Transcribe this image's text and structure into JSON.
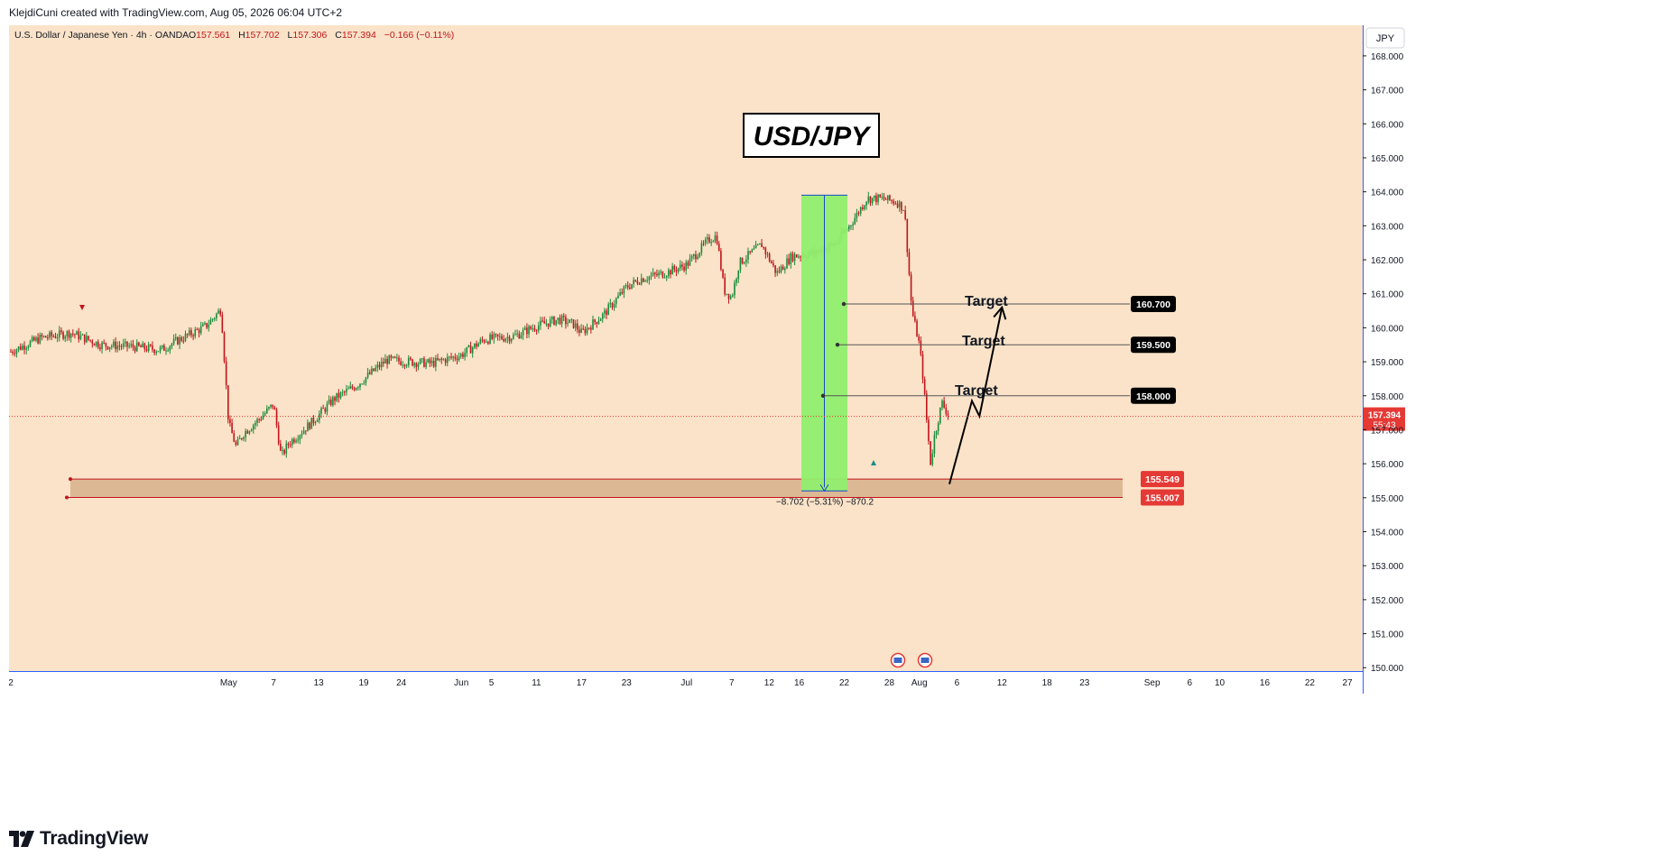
{
  "header": {
    "attribution": "KlejdiCuni created with TradingView.com, Aug 05, 2026 06:04 UTC+2"
  },
  "legend": {
    "symbol_text": "U.S. Dollar / Japanese Yen · 4h · OANDA",
    "o_label": "O",
    "o_value": "157.561",
    "h_label": "H",
    "h_value": "157.702",
    "l_label": "L",
    "l_value": "157.306",
    "c_label": "C",
    "c_value": "157.394",
    "change": "−0.166 (−0.11%)"
  },
  "title_box": "USD/JPY",
  "currency_label": "JPY",
  "price_tag": {
    "price": "157.394",
    "countdown": "55:43"
  },
  "measure_text": "−8.702 (−5.31%) −870.2",
  "annotations": {
    "targets": [
      {
        "text": "Target",
        "price_label": "160.700",
        "price": 160.7
      },
      {
        "text": "Target",
        "price_label": "159.500",
        "price": 159.5
      },
      {
        "text": "Target",
        "price_label": "158.000",
        "price": 158.0
      }
    ],
    "zone_top_label": "155.549",
    "zone_bottom_label": "155.007"
  },
  "footer": {
    "brand": "TradingView"
  },
  "colors": {
    "background": "#fae3c8",
    "up": "#1b8a3a",
    "down": "#c0151c",
    "zone_fill": "#d9b28f",
    "zone_line": "#c0151c",
    "measure_fill": "#90ee6e",
    "measure_line": "#1848c8",
    "price_red": "#e53935",
    "dark_label": "#000000",
    "axis_line": "#2962ff"
  },
  "chart_data": {
    "type": "candlestick",
    "symbol": "USD/JPY",
    "interval": "4h",
    "y_axis": {
      "ticks": [
        150,
        151,
        152,
        153,
        154,
        155,
        156,
        157,
        158,
        159,
        160,
        161,
        162,
        163,
        164,
        165,
        166,
        167,
        168
      ],
      "tick_labels": [
        "150.000",
        "151.000",
        "152.000",
        "153.000",
        "154.000",
        "155.000",
        "156.000",
        "157.000",
        "158.000",
        "159.000",
        "160.000",
        "161.000",
        "162.000",
        "163.000",
        "164.000",
        "165.000",
        "166.000",
        "167.000",
        "168.000"
      ],
      "ylim": [
        149.9,
        168.9
      ]
    },
    "x_axis": {
      "range": [
        "2026-04-02",
        "2026-09-27"
      ],
      "ticks": [
        {
          "date": "2026-04-02",
          "label": "2"
        },
        {
          "date": "2026-05-01",
          "label": "May"
        },
        {
          "date": "2026-05-07",
          "label": "7"
        },
        {
          "date": "2026-05-13",
          "label": "13"
        },
        {
          "date": "2026-05-19",
          "label": "19"
        },
        {
          "date": "2026-05-24",
          "label": "24"
        },
        {
          "date": "2026-06-01",
          "label": "Jun"
        },
        {
          "date": "2026-06-05",
          "label": "5"
        },
        {
          "date": "2026-06-11",
          "label": "11"
        },
        {
          "date": "2026-06-17",
          "label": "17"
        },
        {
          "date": "2026-06-23",
          "label": "23"
        },
        {
          "date": "2026-07-01",
          "label": "Jul"
        },
        {
          "date": "2026-07-07",
          "label": "7"
        },
        {
          "date": "2026-07-12",
          "label": "12"
        },
        {
          "date": "2026-07-16",
          "label": "16"
        },
        {
          "date": "2026-07-22",
          "label": "22"
        },
        {
          "date": "2026-07-28",
          "label": "28"
        },
        {
          "date": "2026-08-01",
          "label": "Aug"
        },
        {
          "date": "2026-08-06",
          "label": "6"
        },
        {
          "date": "2026-08-12",
          "label": "12"
        },
        {
          "date": "2026-08-18",
          "label": "18"
        },
        {
          "date": "2026-08-23",
          "label": "23"
        },
        {
          "date": "2026-09-01",
          "label": "Sep"
        },
        {
          "date": "2026-09-06",
          "label": "6"
        },
        {
          "date": "2026-09-10",
          "label": "10"
        },
        {
          "date": "2026-09-16",
          "label": "16"
        },
        {
          "date": "2026-09-22",
          "label": "22"
        },
        {
          "date": "2026-09-27",
          "label": "27"
        }
      ]
    },
    "price_path": [
      {
        "date": "2026-04-02",
        "price": 159.3
      },
      {
        "date": "2026-04-06",
        "price": 159.7
      },
      {
        "date": "2026-04-10",
        "price": 159.85
      },
      {
        "date": "2026-04-14",
        "price": 159.5
      },
      {
        "date": "2026-04-18",
        "price": 159.45
      },
      {
        "date": "2026-04-22",
        "price": 159.35
      },
      {
        "date": "2026-04-24",
        "price": 159.6
      },
      {
        "date": "2026-04-28",
        "price": 160.05
      },
      {
        "date": "2026-04-30",
        "price": 160.55
      },
      {
        "date": "2026-05-01",
        "price": 157.2
      },
      {
        "date": "2026-05-02",
        "price": 156.5
      },
      {
        "date": "2026-05-03",
        "price": 156.9
      },
      {
        "date": "2026-05-05",
        "price": 157.3
      },
      {
        "date": "2026-05-07",
        "price": 157.75
      },
      {
        "date": "2026-05-08",
        "price": 156.2
      },
      {
        "date": "2026-05-09",
        "price": 156.6
      },
      {
        "date": "2026-05-12",
        "price": 157.2
      },
      {
        "date": "2026-05-15",
        "price": 157.9
      },
      {
        "date": "2026-05-18",
        "price": 158.3
      },
      {
        "date": "2026-05-22",
        "price": 159.05
      },
      {
        "date": "2026-05-25",
        "price": 159.0
      },
      {
        "date": "2026-05-28",
        "price": 158.95
      },
      {
        "date": "2026-06-01",
        "price": 159.2
      },
      {
        "date": "2026-06-04",
        "price": 159.65
      },
      {
        "date": "2026-06-08",
        "price": 159.75
      },
      {
        "date": "2026-06-11",
        "price": 160.05
      },
      {
        "date": "2026-06-14",
        "price": 160.25
      },
      {
        "date": "2026-06-16",
        "price": 160.1
      },
      {
        "date": "2026-06-17",
        "price": 159.85
      },
      {
        "date": "2026-06-20",
        "price": 160.4
      },
      {
        "date": "2026-06-23",
        "price": 161.2
      },
      {
        "date": "2026-06-25",
        "price": 161.45
      },
      {
        "date": "2026-06-28",
        "price": 161.6
      },
      {
        "date": "2026-07-01",
        "price": 161.85
      },
      {
        "date": "2026-07-04",
        "price": 162.6
      },
      {
        "date": "2026-07-05",
        "price": 162.7
      },
      {
        "date": "2026-07-06",
        "price": 161.1
      },
      {
        "date": "2026-07-07",
        "price": 160.9
      },
      {
        "date": "2026-07-08",
        "price": 161.9
      },
      {
        "date": "2026-07-11",
        "price": 162.45
      },
      {
        "date": "2026-07-13",
        "price": 161.6
      },
      {
        "date": "2026-07-15",
        "price": 162.1
      },
      {
        "date": "2026-07-18",
        "price": 162.2
      },
      {
        "date": "2026-07-21",
        "price": 162.5
      },
      {
        "date": "2026-07-23",
        "price": 163.1
      },
      {
        "date": "2026-07-25",
        "price": 163.8
      },
      {
        "date": "2026-07-27",
        "price": 163.8
      },
      {
        "date": "2026-07-29",
        "price": 163.7
      },
      {
        "date": "2026-07-30",
        "price": 163.5
      },
      {
        "date": "2026-07-31",
        "price": 160.5
      },
      {
        "date": "2026-08-01",
        "price": 159.5
      },
      {
        "date": "2026-08-01T12:00",
        "price": 158.5
      },
      {
        "date": "2026-08-02",
        "price": 157.2
      },
      {
        "date": "2026-08-02T12:00",
        "price": 156.0
      },
      {
        "date": "2026-08-03",
        "price": 156.8
      },
      {
        "date": "2026-08-04",
        "price": 157.8
      },
      {
        "date": "2026-08-05",
        "price": 157.39
      }
    ],
    "markers": [
      {
        "type": "horizontal_level",
        "price": 160.7,
        "label": "160.700"
      },
      {
        "type": "horizontal_level",
        "price": 159.5,
        "label": "159.500"
      },
      {
        "type": "horizontal_level",
        "price": 158.0,
        "label": "158.000"
      },
      {
        "type": "support_zone",
        "top": 155.549,
        "bottom": 155.007
      },
      {
        "type": "measure",
        "from": 163.9,
        "to": 155.2,
        "text": "−8.702 (−5.31%) −870.2"
      }
    ],
    "projection_path": [
      {
        "date": "2026-08-05",
        "price": 155.4
      },
      {
        "date": "2026-08-08",
        "price": 157.85
      },
      {
        "date": "2026-08-09",
        "price": 157.4
      },
      {
        "date": "2026-08-12",
        "price": 160.6
      }
    ],
    "current_price": 157.394
  }
}
